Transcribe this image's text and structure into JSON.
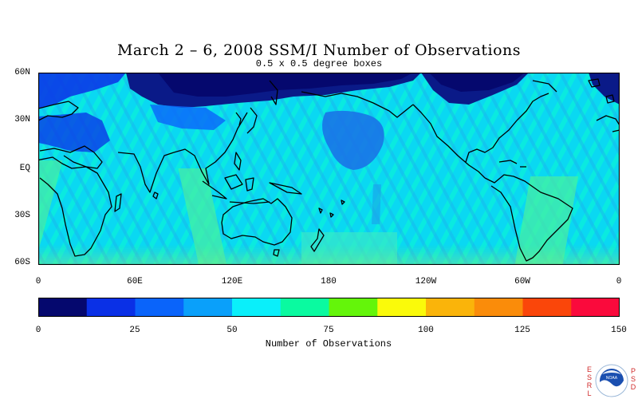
{
  "title": "March 2 – 6, 2008 SSM/I Number of Observations",
  "subtitle": "0.5 x 0.5 degree boxes",
  "map": {
    "projection": "cylindrical",
    "lat_range": [
      -60,
      60
    ],
    "lon_range": [
      0,
      360
    ],
    "lat_labels": [
      "60N",
      "30N",
      "EQ",
      "30S",
      "60S"
    ],
    "lon_labels": [
      "0",
      "60E",
      "120E",
      "180",
      "120W",
      "60W",
      "0"
    ]
  },
  "colorbar": {
    "label": "Number of Observations",
    "ticks": [
      "0",
      "25",
      "50",
      "75",
      "100",
      "125",
      "150"
    ],
    "colors": [
      "#05086e",
      "#0a30e6",
      "#0a64fa",
      "#0aa0fa",
      "#0aeffa",
      "#0afaa0",
      "#64f50a",
      "#fafa0a",
      "#fab40a",
      "#fa8c0a",
      "#fa460a",
      "#fa0a3c"
    ]
  },
  "logo": {
    "left_letters": [
      "E",
      "S",
      "R",
      "L"
    ],
    "right_letters": [
      "P",
      "S",
      "D"
    ],
    "name": "NOAA",
    "icon": "noaa-logo-icon"
  }
}
